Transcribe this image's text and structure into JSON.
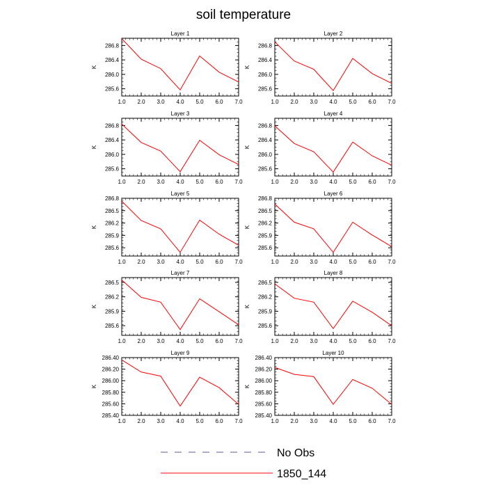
{
  "chart_data": {
    "type": "line",
    "title": "soil temperature",
    "xlabel": "",
    "ylabel": "K",
    "x": [
      1,
      2,
      3,
      4,
      5,
      6,
      7
    ],
    "xticks": [
      "1.0",
      "2.0",
      "3.0",
      "4.0",
      "5.0",
      "6.0",
      "7.0"
    ],
    "xlim": [
      1,
      7
    ],
    "legend": [
      {
        "label": "No Obs",
        "style": "dashed",
        "color": "#5a5a9a"
      },
      {
        "label": "1850_144",
        "style": "solid",
        "color": "#ff0000"
      }
    ],
    "panels": [
      {
        "title": "Layer 1",
        "ylim": [
          285.4,
          287.0
        ],
        "yticks": [
          "285.6",
          "286.0",
          "286.4",
          "286.8"
        ],
        "ytick_values": [
          285.6,
          286.0,
          286.4,
          286.8
        ],
        "series": [
          {
            "name": "1850_144",
            "color": "#ff0000",
            "values": [
              286.99,
              286.42,
              286.16,
              285.57,
              286.51,
              286.06,
              285.79
            ]
          }
        ]
      },
      {
        "title": "Layer 2",
        "ylim": [
          285.4,
          287.0
        ],
        "yticks": [
          "285.6",
          "286.0",
          "286.4",
          "286.8"
        ],
        "ytick_values": [
          285.6,
          286.0,
          286.4,
          286.8
        ],
        "series": [
          {
            "name": "1850_144",
            "color": "#ff0000",
            "values": [
              286.9,
              286.37,
              286.14,
              285.55,
              286.44,
              286.02,
              285.75
            ]
          }
        ]
      },
      {
        "title": "Layer 3",
        "ylim": [
          285.4,
          287.0
        ],
        "yticks": [
          "285.6",
          "286.0",
          "286.4",
          "286.8"
        ],
        "ytick_values": [
          285.6,
          286.0,
          286.4,
          286.8
        ],
        "series": [
          {
            "name": "1850_144",
            "color": "#ff0000",
            "values": [
              286.84,
              286.33,
              286.09,
              285.52,
              286.39,
              285.99,
              285.72
            ]
          }
        ]
      },
      {
        "title": "Layer 4",
        "ylim": [
          285.4,
          287.0
        ],
        "yticks": [
          "285.6",
          "286.0",
          "286.4",
          "286.8"
        ],
        "ytick_values": [
          285.6,
          286.0,
          286.4,
          286.8
        ],
        "series": [
          {
            "name": "1850_144",
            "color": "#ff0000",
            "values": [
              286.79,
              286.3,
              286.07,
              285.51,
              286.34,
              285.96,
              285.7
            ]
          }
        ]
      },
      {
        "title": "Layer 5",
        "ylim": [
          285.4,
          286.8
        ],
        "yticks": [
          "285.6",
          "285.9",
          "286.2",
          "286.5",
          "286.8"
        ],
        "ytick_values": [
          285.6,
          285.9,
          286.2,
          286.5,
          286.8
        ],
        "series": [
          {
            "name": "1850_144",
            "color": "#ff0000",
            "values": [
              286.73,
              286.26,
              286.06,
              285.49,
              286.27,
              285.93,
              285.66
            ]
          }
        ]
      },
      {
        "title": "Layer 6",
        "ylim": [
          285.4,
          286.8
        ],
        "yticks": [
          "285.6",
          "285.9",
          "286.2",
          "286.5",
          "286.8"
        ],
        "ytick_values": [
          285.6,
          285.9,
          286.2,
          286.5,
          286.8
        ],
        "series": [
          {
            "name": "1850_144",
            "color": "#ff0000",
            "values": [
              286.66,
              286.22,
              286.06,
              285.49,
              286.22,
              285.91,
              285.63
            ]
          }
        ]
      },
      {
        "title": "Layer 7",
        "ylim": [
          285.4,
          286.6
        ],
        "yticks": [
          "285.6",
          "285.9",
          "286.2",
          "286.5"
        ],
        "ytick_values": [
          285.6,
          285.9,
          286.2,
          286.5
        ],
        "series": [
          {
            "name": "1850_144",
            "color": "#ff0000",
            "values": [
              286.55,
              286.19,
              286.09,
              285.52,
              286.16,
              285.89,
              285.62
            ]
          }
        ]
      },
      {
        "title": "Layer 8",
        "ylim": [
          285.4,
          286.6
        ],
        "yticks": [
          "285.6",
          "285.9",
          "286.2",
          "286.5"
        ],
        "ytick_values": [
          285.6,
          285.9,
          286.2,
          286.5
        ],
        "series": [
          {
            "name": "1850_144",
            "color": "#ff0000",
            "values": [
              286.47,
              286.17,
              286.09,
              285.54,
              286.11,
              285.88,
              285.6
            ]
          }
        ]
      },
      {
        "title": "Layer 9",
        "ylim": [
          285.4,
          286.4
        ],
        "yticks": [
          "285.40",
          "285.60",
          "285.80",
          "286.00",
          "286.20",
          "286.40"
        ],
        "ytick_values": [
          285.4,
          285.6,
          285.8,
          286.0,
          286.2,
          286.4
        ],
        "series": [
          {
            "name": "1850_144",
            "color": "#ff0000",
            "values": [
              286.36,
              286.15,
              286.08,
              285.56,
              286.06,
              285.88,
              285.59
            ]
          }
        ]
      },
      {
        "title": "Layer 10",
        "ylim": [
          285.4,
          286.4
        ],
        "yticks": [
          "285.40",
          "285.60",
          "285.80",
          "286.00",
          "286.20",
          "286.40"
        ],
        "ytick_values": [
          285.4,
          285.6,
          285.8,
          286.0,
          286.2,
          286.4
        ],
        "series": [
          {
            "name": "1850_144",
            "color": "#ff0000",
            "values": [
              286.23,
              286.11,
              286.07,
              285.59,
              286.02,
              285.87,
              285.59
            ]
          }
        ]
      }
    ]
  }
}
